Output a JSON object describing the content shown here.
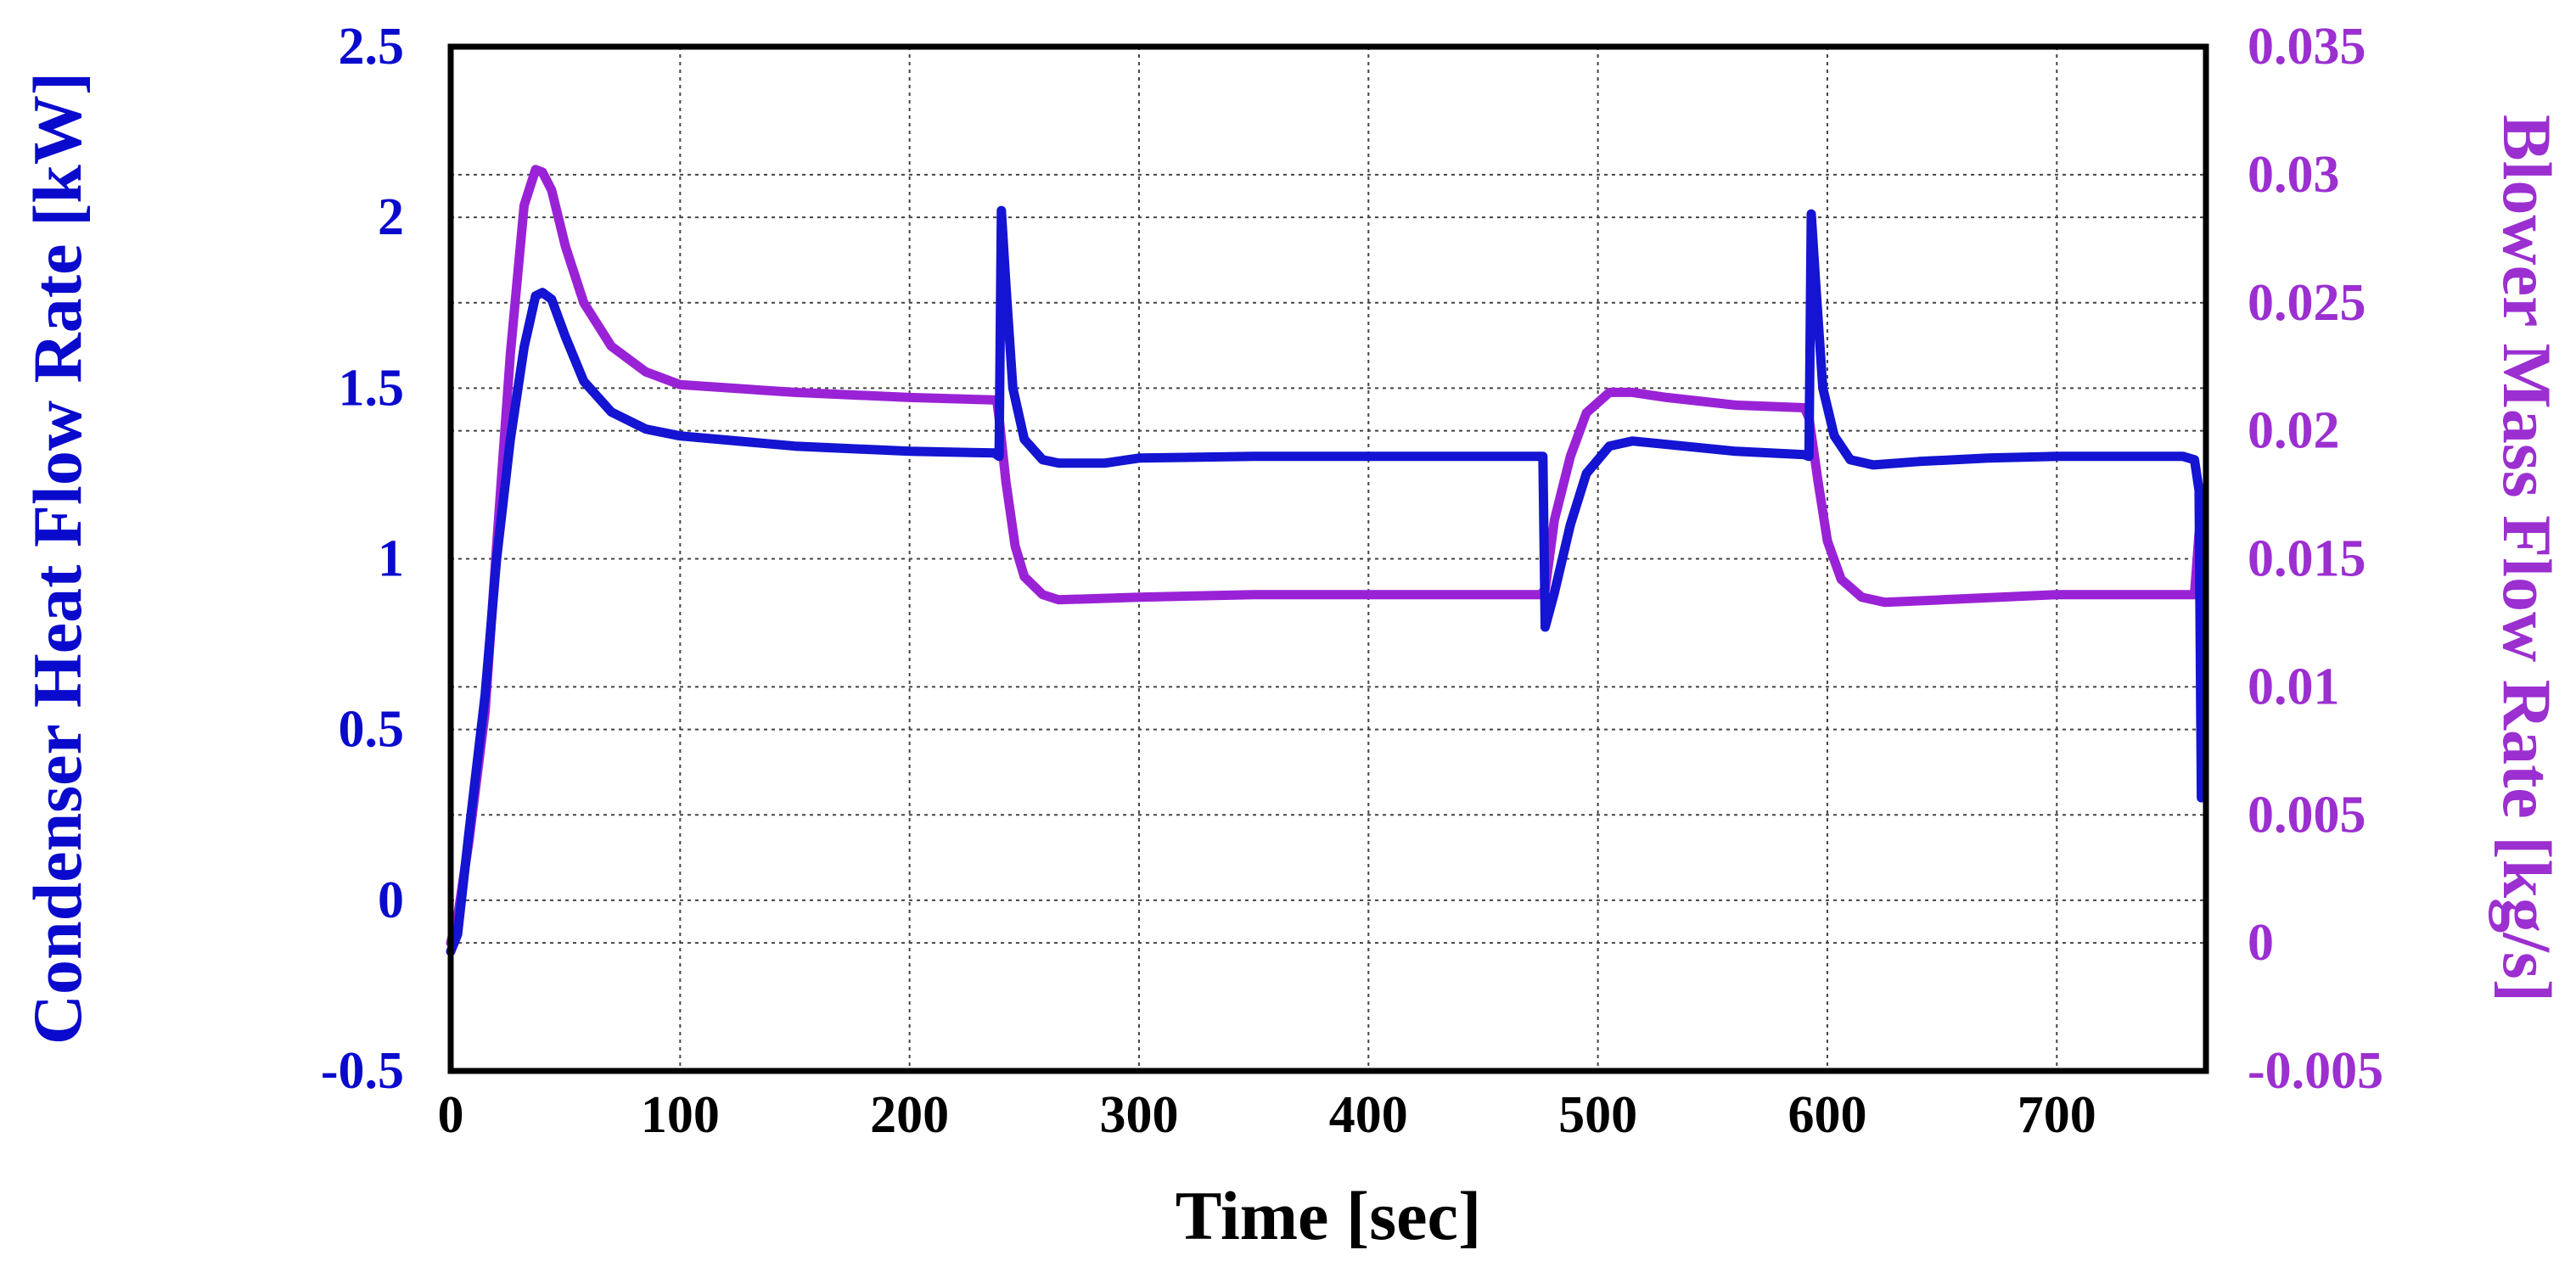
{
  "chart_data": {
    "type": "line",
    "xlabel": "Time [sec]",
    "ylabel_left": "Condenser Heat Flow Rate [kW]",
    "ylabel_right": "Blower Mass Flow Rate [kg/s]",
    "xlim": [
      0,
      765
    ],
    "ylim_left": [
      -0.5,
      2.5
    ],
    "ylim_right": [
      -0.005,
      0.035
    ],
    "x_ticks": [
      "0",
      "100",
      "200",
      "300",
      "400",
      "500",
      "600",
      "700"
    ],
    "y_ticks_left": [
      "-0.5",
      "0",
      "0.5",
      "1",
      "1.5",
      "2",
      "2.5"
    ],
    "y_ticks_right": [
      "-0.005",
      "0",
      "0.005",
      "0.01",
      "0.015",
      "0.02",
      "0.025",
      "0.03",
      "0.035"
    ],
    "grid": true,
    "colors": {
      "left_axis": "#0a0acd",
      "right_axis": "#9b2fd0",
      "heat": "#1414d2",
      "mass": "#9a22d6"
    },
    "series": [
      {
        "name": "Condenser Heat Flow Rate",
        "axis": "left",
        "points": [
          [
            0,
            -0.15
          ],
          [
            3,
            -0.1
          ],
          [
            8,
            0.2
          ],
          [
            15,
            0.6
          ],
          [
            20,
            1.0
          ],
          [
            26,
            1.35
          ],
          [
            32,
            1.62
          ],
          [
            37,
            1.77
          ],
          [
            40,
            1.78
          ],
          [
            44,
            1.76
          ],
          [
            50,
            1.65
          ],
          [
            58,
            1.52
          ],
          [
            70,
            1.43
          ],
          [
            85,
            1.38
          ],
          [
            100,
            1.36
          ],
          [
            150,
            1.33
          ],
          [
            200,
            1.315
          ],
          [
            237,
            1.31
          ],
          [
            239,
            1.3
          ],
          [
            240,
            2.02
          ],
          [
            242,
            1.8
          ],
          [
            245,
            1.5
          ],
          [
            250,
            1.35
          ],
          [
            258,
            1.29
          ],
          [
            265,
            1.28
          ],
          [
            285,
            1.28
          ],
          [
            300,
            1.295
          ],
          [
            350,
            1.3
          ],
          [
            400,
            1.3
          ],
          [
            476,
            1.3
          ],
          [
            477,
            0.8
          ],
          [
            481,
            0.9
          ],
          [
            488,
            1.1
          ],
          [
            495,
            1.25
          ],
          [
            505,
            1.33
          ],
          [
            515,
            1.345
          ],
          [
            530,
            1.335
          ],
          [
            560,
            1.315
          ],
          [
            590,
            1.305
          ],
          [
            592,
            1.3
          ],
          [
            593,
            2.01
          ],
          [
            595,
            1.8
          ],
          [
            598,
            1.5
          ],
          [
            603,
            1.36
          ],
          [
            610,
            1.29
          ],
          [
            620,
            1.275
          ],
          [
            640,
            1.285
          ],
          [
            670,
            1.295
          ],
          [
            700,
            1.3
          ],
          [
            755,
            1.3
          ],
          [
            760,
            1.29
          ],
          [
            762,
            1.2
          ],
          [
            763,
            0.3
          ]
        ]
      },
      {
        "name": "Blower Mass Flow Rate",
        "axis": "right",
        "points": [
          [
            0,
            0
          ],
          [
            3,
            0.001
          ],
          [
            8,
            0.004
          ],
          [
            15,
            0.009
          ],
          [
            20,
            0.0155
          ],
          [
            26,
            0.023
          ],
          [
            32,
            0.0288
          ],
          [
            37,
            0.0302
          ],
          [
            40,
            0.0301
          ],
          [
            44,
            0.0294
          ],
          [
            50,
            0.0272
          ],
          [
            58,
            0.025
          ],
          [
            70,
            0.0233
          ],
          [
            85,
            0.0223
          ],
          [
            100,
            0.0218
          ],
          [
            150,
            0.0215
          ],
          [
            200,
            0.0213
          ],
          [
            238,
            0.0212
          ],
          [
            239,
            0.0205
          ],
          [
            242,
            0.018
          ],
          [
            246,
            0.0155
          ],
          [
            250,
            0.0143
          ],
          [
            258,
            0.0136
          ],
          [
            265,
            0.0134
          ],
          [
            300,
            0.0135
          ],
          [
            350,
            0.0136
          ],
          [
            400,
            0.0136
          ],
          [
            475,
            0.0136
          ],
          [
            477,
            0.0138
          ],
          [
            481,
            0.0165
          ],
          [
            488,
            0.019
          ],
          [
            495,
            0.0207
          ],
          [
            505,
            0.0215
          ],
          [
            515,
            0.0215
          ],
          [
            530,
            0.0213
          ],
          [
            560,
            0.021
          ],
          [
            590,
            0.0209
          ],
          [
            592,
            0.0205
          ],
          [
            596,
            0.018
          ],
          [
            600,
            0.0157
          ],
          [
            606,
            0.0142
          ],
          [
            615,
            0.0135
          ],
          [
            625,
            0.0133
          ],
          [
            650,
            0.0134
          ],
          [
            700,
            0.0136
          ],
          [
            755,
            0.0136
          ],
          [
            760,
            0.0136
          ],
          [
            762,
            0.016
          ]
        ]
      }
    ]
  }
}
